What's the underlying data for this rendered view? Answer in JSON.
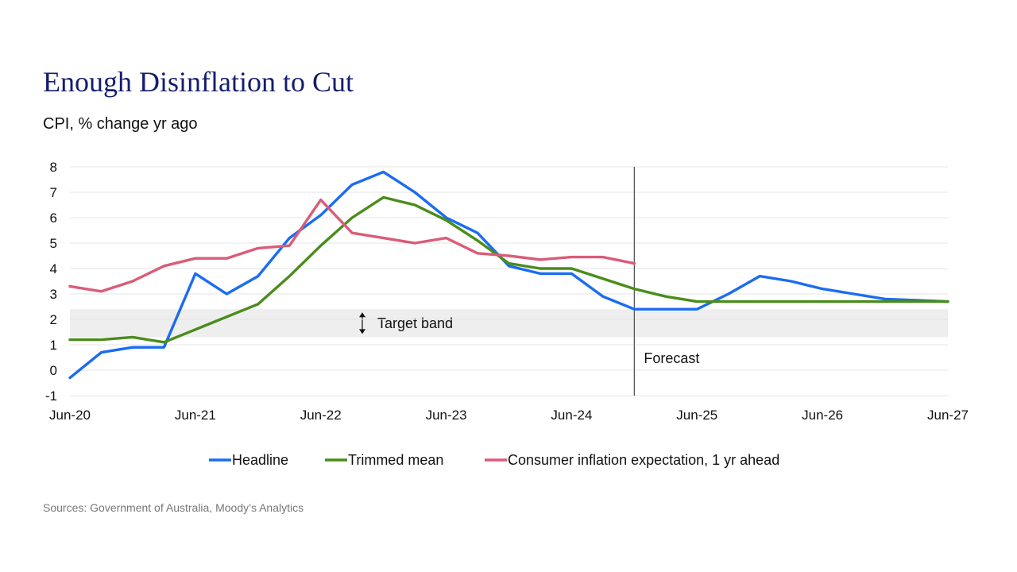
{
  "title": "Enough Disinflation to Cut",
  "subtitle": "CPI, % change yr ago",
  "source": "Sources: Government of Australia, Moody’s Analytics",
  "chart_data": {
    "type": "line",
    "xlim": [
      "2020-06",
      "2027-06"
    ],
    "ylim": [
      -1,
      8
    ],
    "y_ticks": [
      -1,
      0,
      1,
      2,
      3,
      4,
      5,
      6,
      7,
      8
    ],
    "x_ticks": [
      {
        "date": "2020-06",
        "label": "Jun-20"
      },
      {
        "date": "2021-06",
        "label": "Jun-21"
      },
      {
        "date": "2022-06",
        "label": "Jun-22"
      },
      {
        "date": "2023-06",
        "label": "Jun-23"
      },
      {
        "date": "2024-06",
        "label": "Jun-24"
      },
      {
        "date": "2025-06",
        "label": "Jun-25"
      },
      {
        "date": "2026-06",
        "label": "Jun-26"
      },
      {
        "date": "2027-06",
        "label": "Jun-27"
      }
    ],
    "grid": true,
    "target_band": {
      "range": [
        1.3,
        2.4
      ],
      "label": "Target band",
      "color": "#eeeeee"
    },
    "forecast_line": {
      "date": "2024-12",
      "label": "Forecast"
    },
    "legend_position": "bottom",
    "series": [
      {
        "name": "Headline",
        "color": "#1a6cf2",
        "x": [
          "2020-06",
          "2020-09",
          "2020-12",
          "2021-03",
          "2021-06",
          "2021-09",
          "2021-12",
          "2022-03",
          "2022-06",
          "2022-09",
          "2022-12",
          "2023-03",
          "2023-06",
          "2023-09",
          "2023-12",
          "2024-03",
          "2024-06",
          "2024-09",
          "2024-12",
          "2025-03",
          "2025-06",
          "2025-09",
          "2025-12",
          "2026-03",
          "2026-06",
          "2026-09",
          "2026-12",
          "2027-03",
          "2027-06"
        ],
        "values": [
          -0.3,
          0.7,
          0.9,
          0.9,
          3.8,
          3.0,
          3.7,
          5.2,
          6.1,
          7.3,
          7.8,
          7.0,
          6.0,
          5.4,
          4.1,
          3.8,
          3.8,
          2.9,
          2.4,
          2.4,
          2.4,
          3.0,
          3.7,
          3.5,
          3.2,
          3.0,
          2.8,
          2.75,
          2.7
        ]
      },
      {
        "name": "Trimmed mean",
        "color": "#4a8c1c",
        "x": [
          "2020-06",
          "2020-09",
          "2020-12",
          "2021-03",
          "2021-06",
          "2021-09",
          "2021-12",
          "2022-03",
          "2022-06",
          "2022-09",
          "2022-12",
          "2023-03",
          "2023-06",
          "2023-09",
          "2023-12",
          "2024-03",
          "2024-06",
          "2024-09",
          "2024-12",
          "2025-03",
          "2025-06",
          "2025-09",
          "2025-12",
          "2026-03",
          "2026-06",
          "2026-09",
          "2026-12",
          "2027-03",
          "2027-06"
        ],
        "values": [
          1.2,
          1.2,
          1.3,
          1.1,
          1.6,
          2.1,
          2.6,
          3.7,
          4.9,
          6.0,
          6.8,
          6.5,
          5.9,
          5.1,
          4.2,
          4.0,
          4.0,
          3.6,
          3.2,
          2.9,
          2.7,
          2.7,
          2.7,
          2.7,
          2.7,
          2.7,
          2.7,
          2.7,
          2.7
        ]
      },
      {
        "name": "Consumer inflation expectation, 1 yr ahead",
        "color": "#d95c79",
        "x": [
          "2020-06",
          "2020-09",
          "2020-12",
          "2021-03",
          "2021-06",
          "2021-09",
          "2021-12",
          "2022-03",
          "2022-06",
          "2022-09",
          "2022-12",
          "2023-03",
          "2023-06",
          "2023-09",
          "2023-12",
          "2024-03",
          "2024-06",
          "2024-09",
          "2024-12"
        ],
        "values": [
          3.3,
          3.1,
          3.5,
          4.1,
          4.4,
          4.4,
          4.8,
          4.9,
          6.7,
          5.4,
          5.2,
          5.0,
          5.2,
          4.6,
          4.5,
          4.35,
          4.45,
          4.45,
          4.2
        ]
      }
    ]
  }
}
